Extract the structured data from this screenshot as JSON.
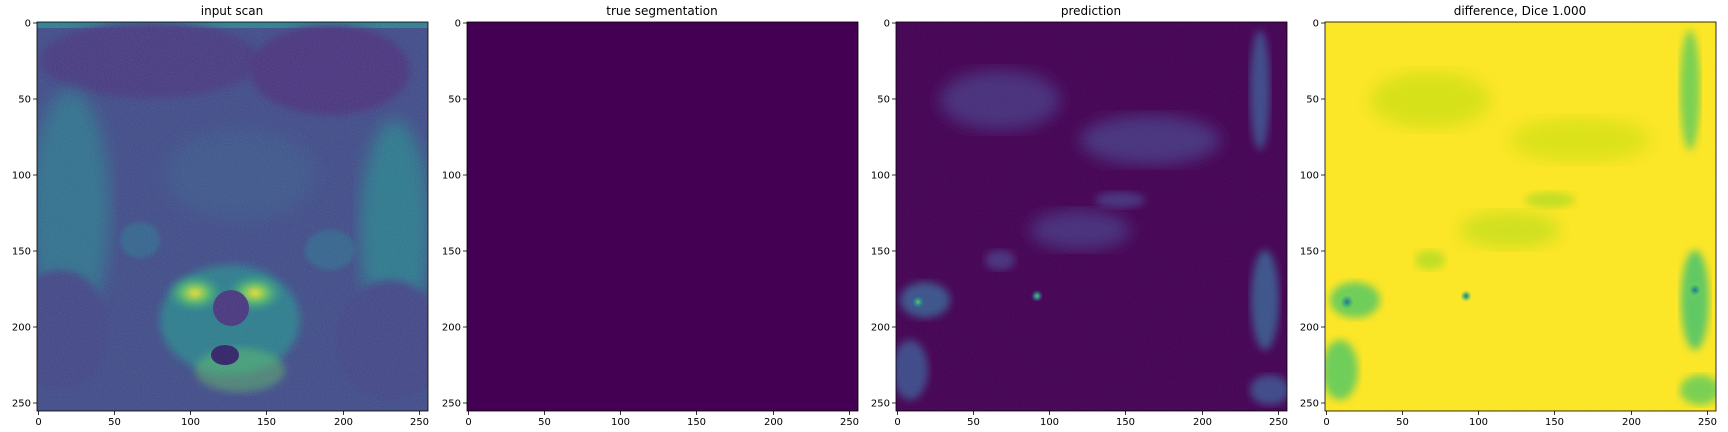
{
  "figure": {
    "panels": [
      {
        "title": "input scan",
        "content": "input-scan-image"
      },
      {
        "title": "true segmentation",
        "content": "true-segmentation-image"
      },
      {
        "title": "prediction",
        "content": "prediction-image"
      },
      {
        "title": "difference, Dice 1.000",
        "content": "difference-image"
      }
    ],
    "axes": {
      "x_ticks": [
        "0",
        "50",
        "100",
        "150",
        "200",
        "250"
      ],
      "y_ticks": [
        "0",
        "50",
        "100",
        "150",
        "200",
        "250"
      ],
      "x_range": [
        0,
        256
      ],
      "y_range": [
        0,
        256
      ]
    },
    "colors": {
      "viridis_dark": "#440154",
      "viridis_blue": "#3b528b",
      "viridis_teal": "#21918c",
      "viridis_green": "#5ec962",
      "viridis_yellow": "#fde725"
    }
  }
}
